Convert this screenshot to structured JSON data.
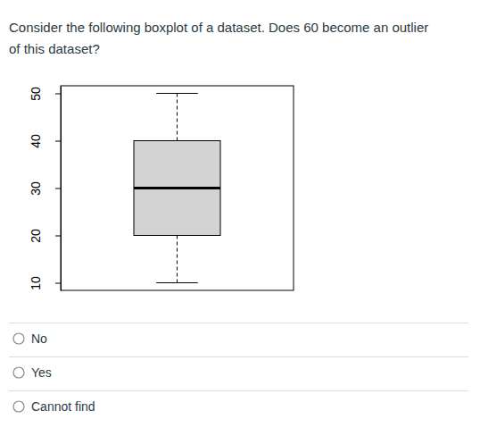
{
  "question": [
    "Consider the following boxplot of a dataset. Does 60 become an outlier",
    "of this dataset?"
  ],
  "options": [
    "No",
    "Yes",
    "Cannot find"
  ],
  "chart_data": {
    "type": "box",
    "boxes": [
      {
        "min": 10,
        "q1": 20,
        "median": 30,
        "q3": 40,
        "max": 50
      }
    ],
    "color": "#d3d3d3",
    "ylim": [
      8.4,
      51.6
    ],
    "yticks": [
      10,
      20,
      30,
      40,
      50
    ]
  }
}
